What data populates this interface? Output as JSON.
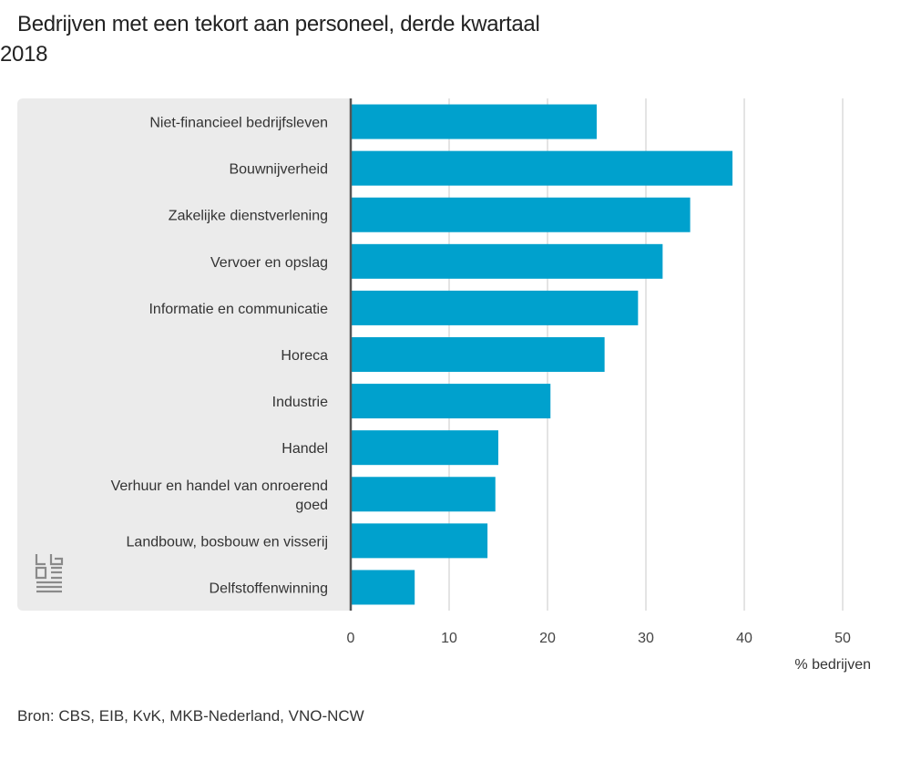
{
  "title_line1": "Bedrijven met een tekort aan personeel, derde kwartaal",
  "title_line2": "2018",
  "source": "Bron: CBS, EIB, KvK, MKB-Nederland, VNO-NCW",
  "unit_label": "% bedrijven",
  "logo_icon": "cbs-logo",
  "colors": {
    "bar": "#00a1cd",
    "panel": "#ebebeb",
    "axis": "#555555",
    "grid": "#c8c8c8"
  },
  "chart_data": {
    "type": "bar",
    "orientation": "horizontal",
    "title": "Bedrijven met een tekort aan personeel, derde kwartaal 2018",
    "xlabel": "% bedrijven",
    "ylabel": "",
    "xlim": [
      0,
      50
    ],
    "xticks": [
      "0",
      "10",
      "20",
      "30",
      "40",
      "50"
    ],
    "grid": true,
    "categories": [
      [
        "Niet-financieel bedrijfsleven"
      ],
      [
        "Bouwnijverheid"
      ],
      [
        "Zakelijke dienstverlening"
      ],
      [
        "Vervoer en opslag"
      ],
      [
        "Informatie en communicatie"
      ],
      [
        "Horeca"
      ],
      [
        "Industrie"
      ],
      [
        "Handel"
      ],
      [
        "Verhuur en handel van onroerend",
        "goed"
      ],
      [
        "Landbouw, bosbouw en visserij"
      ],
      [
        "Delfstoffenwinning"
      ]
    ],
    "values": [
      25.0,
      38.8,
      34.5,
      31.7,
      29.2,
      25.8,
      20.3,
      15.0,
      14.7,
      13.9,
      6.5
    ]
  }
}
